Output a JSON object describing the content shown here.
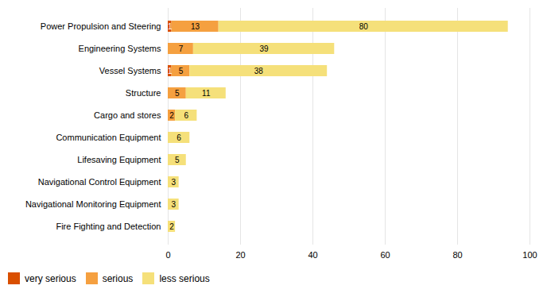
{
  "chart_data": {
    "type": "bar",
    "orientation": "horizontal",
    "stacked": true,
    "categories": [
      "Power Propulsion and Steering",
      "Engineering Systems",
      "Vessel Systems",
      "Structure",
      "Cargo and stores",
      "Communication Equipment",
      "Lifesaving Equipment",
      "Navigational Control Equipment",
      "Navigational Monitoring Equipment",
      "Fire Fighting and Detection"
    ],
    "series": [
      {
        "name": "very serious",
        "color": "#D94F00",
        "values": [
          1,
          0,
          1,
          0,
          0,
          0,
          0,
          0,
          0,
          0
        ]
      },
      {
        "name": "serious",
        "color": "#F5A040",
        "values": [
          13,
          7,
          5,
          5,
          2,
          0,
          0,
          0,
          0,
          0
        ]
      },
      {
        "name": "less serious",
        "color": "#F5E07A",
        "values": [
          80,
          39,
          38,
          11,
          6,
          6,
          5,
          3,
          3,
          2
        ]
      }
    ],
    "xlim": [
      0,
      100
    ],
    "xticks": [
      0,
      20,
      40,
      60,
      80,
      100
    ],
    "grid": true,
    "data_labels": true,
    "legend": "lower left"
  }
}
